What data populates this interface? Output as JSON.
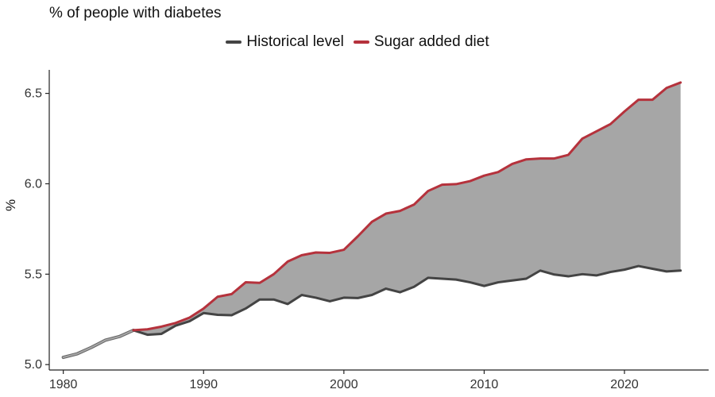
{
  "chart_data": {
    "type": "area",
    "title": "% of people with diabetes",
    "xlabel": "",
    "ylabel": "%",
    "xlim": [
      1979,
      2026
    ],
    "ylim": [
      4.97,
      6.63
    ],
    "x_ticks": [
      1980,
      1990,
      2000,
      2010,
      2020
    ],
    "y_ticks": [
      5.0,
      5.5,
      6.0,
      6.5
    ],
    "y_tick_labels": [
      "5.0",
      "5.5",
      "6.0",
      "6.5"
    ],
    "grid": false,
    "legend": {
      "position": "top",
      "entries": [
        "Historical level",
        "Sugar added diet"
      ]
    },
    "shared_history": {
      "x": [
        1980,
        1981,
        1982,
        1983,
        1984,
        1985
      ],
      "values": [
        5.04,
        5.06,
        5.095,
        5.135,
        5.155,
        5.19
      ]
    },
    "x": [
      1985,
      1986,
      1987,
      1988,
      1989,
      1990,
      1991,
      1992,
      1993,
      1994,
      1995,
      1996,
      1997,
      1998,
      1999,
      2000,
      2001,
      2002,
      2003,
      2004,
      2005,
      2006,
      2007,
      2008,
      2009,
      2010,
      2011,
      2012,
      2013,
      2014,
      2015,
      2016,
      2017,
      2018,
      2019,
      2020,
      2021,
      2022,
      2023,
      2024
    ],
    "series": [
      {
        "name": "Historical level",
        "color": "#444444",
        "values": [
          5.19,
          5.165,
          5.17,
          5.215,
          5.24,
          5.285,
          5.275,
          5.273,
          5.31,
          5.36,
          5.36,
          5.335,
          5.385,
          5.37,
          5.35,
          5.37,
          5.368,
          5.385,
          5.42,
          5.4,
          5.43,
          5.48,
          5.475,
          5.47,
          5.455,
          5.435,
          5.455,
          5.465,
          5.475,
          5.52,
          5.498,
          5.488,
          5.5,
          5.493,
          5.512,
          5.525,
          5.545,
          5.53,
          5.515,
          5.52
        ]
      },
      {
        "name": "Sugar added diet",
        "color": "#b5323c",
        "values": [
          5.19,
          5.195,
          5.21,
          5.23,
          5.26,
          5.31,
          5.375,
          5.39,
          5.455,
          5.452,
          5.5,
          5.57,
          5.605,
          5.62,
          5.618,
          5.635,
          5.71,
          5.79,
          5.835,
          5.85,
          5.885,
          5.96,
          5.995,
          5.998,
          6.015,
          6.045,
          6.065,
          6.11,
          6.135,
          6.14,
          6.14,
          6.16,
          6.25,
          6.29,
          6.33,
          6.4,
          6.465,
          6.465,
          6.53,
          6.56
        ]
      }
    ],
    "fill_between_color": "#a6a6a6",
    "history_color": "#a6a6a6"
  }
}
